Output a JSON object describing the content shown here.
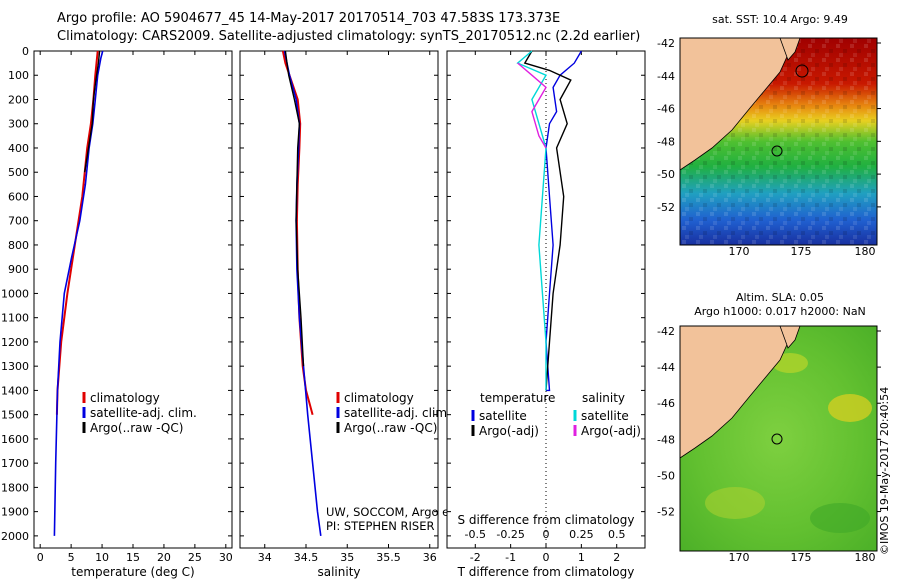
{
  "header": {
    "line1": "Argo profile: AO 5904677_45 14-May-2017 20170514_703 47.583S 173.373E",
    "line2": "Climatology: CARS2009. Satellite-adjusted climatology: synTS_20170512.nc (2.2d earlier)"
  },
  "colors": {
    "climatology": "#e00000",
    "satellite": "#0000e0",
    "argo": "#000000",
    "satellite_s": "#00d8d8",
    "argo_s": "#e020e0",
    "land": "#f2c29a"
  },
  "chart_data": [
    {
      "type": "line",
      "name": "temperature-panel",
      "xlabel": "temperature (deg C)",
      "ylabel": "",
      "xlim": [
        -1,
        31
      ],
      "ylim": [
        0,
        2050
      ],
      "xticks": [
        "0",
        "5",
        "10",
        "15",
        "20",
        "25",
        "30"
      ],
      "yticks": [
        "0",
        "100",
        "200",
        "300",
        "400",
        "500",
        "600",
        "700",
        "800",
        "900",
        "1000",
        "1100",
        "1200",
        "1300",
        "1400",
        "1500",
        "1600",
        "1700",
        "1800",
        "1900",
        "2000"
      ],
      "legend": [
        "climatology",
        "satellite-adj. clim.",
        "Argo(..raw -QC)"
      ],
      "series": [
        {
          "name": "climatology",
          "x": [
            9.3,
            9.1,
            8.9,
            8.6,
            8.2,
            7.6,
            6.8,
            5.6,
            4.4,
            3.4,
            2.8,
            2.7
          ],
          "y": [
            0,
            50,
            100,
            200,
            300,
            400,
            600,
            800,
            1000,
            1200,
            1400,
            1500
          ]
        },
        {
          "name": "satellite-adj. clim.",
          "x": [
            10.1,
            9.8,
            9.3,
            8.9,
            8.5,
            7.9,
            7.3,
            6.4,
            5.1,
            3.9,
            3.2,
            2.8,
            2.5,
            2.3
          ],
          "y": [
            0,
            30,
            100,
            200,
            300,
            400,
            550,
            700,
            850,
            1000,
            1200,
            1400,
            1700,
            2000
          ]
        },
        {
          "name": "Argo(..raw -QC)",
          "x": [
            9.6,
            9.4,
            9.0,
            8.6,
            8.4,
            7.8,
            7.2
          ],
          "y": [
            0,
            50,
            120,
            200,
            300,
            400,
            500
          ]
        }
      ]
    },
    {
      "type": "line",
      "name": "salinity-panel",
      "xlabel": "salinity",
      "xlim": [
        33.7,
        36.1
      ],
      "ylim": [
        0,
        2050
      ],
      "xticks": [
        "34",
        "34.5",
        "35",
        "35.5",
        "36"
      ],
      "legend": [
        "climatology",
        "satellite-adj. clim.",
        "Argo(..raw -QC)"
      ],
      "annotation": [
        "UW, SOCCOM, Argo equivalent",
        "PI: STEPHEN RISER"
      ],
      "series": [
        {
          "name": "climatology",
          "x": [
            34.22,
            34.25,
            34.32,
            34.4,
            34.43,
            34.42,
            34.4,
            34.39,
            34.4,
            34.42,
            34.46,
            34.5,
            34.54,
            34.58
          ],
          "y": [
            0,
            50,
            120,
            200,
            300,
            400,
            550,
            700,
            900,
            1100,
            1300,
            1400,
            1450,
            1500
          ]
        },
        {
          "name": "satellite-adj. clim.",
          "x": [
            34.24,
            34.27,
            34.3,
            34.38,
            34.42,
            34.41,
            34.39,
            34.38,
            34.39,
            34.42,
            34.47,
            34.52,
            34.58,
            34.64,
            34.68
          ],
          "y": [
            0,
            50,
            100,
            200,
            300,
            400,
            550,
            700,
            900,
            1100,
            1300,
            1500,
            1700,
            1900,
            2000
          ]
        },
        {
          "name": "Argo(..raw -QC)",
          "x": [
            34.25,
            34.27,
            34.29,
            34.36,
            34.42,
            34.4,
            34.39,
            34.38,
            34.4,
            34.44,
            34.47
          ],
          "y": [
            0,
            50,
            100,
            200,
            300,
            400,
            550,
            700,
            900,
            1100,
            1300
          ]
        }
      ]
    },
    {
      "type": "line",
      "name": "difference-panel",
      "xlabel": "T difference from climatology",
      "xlabel2": "S difference from climatology",
      "xlim": [
        -2.8,
        2.8
      ],
      "ylim": [
        0,
        2050
      ],
      "xticks": [
        "-2",
        "-1",
        "0",
        "1",
        "2"
      ],
      "xticks2": [
        "-0.5",
        "-0.25",
        "0",
        "0.25",
        "0.5"
      ],
      "legend_title_t": "temperature",
      "legend_title_s": "salinity",
      "legend": [
        "satellite",
        "Argo(-adj)",
        "satellite",
        "Argo(-adj)"
      ],
      "series": [
        {
          "name": "T satellite",
          "x": [
            1.0,
            0.8,
            0.4,
            0.2,
            0.3,
            0.1,
            0.0,
            0.1,
            0.2,
            0.1,
            0.0,
            0.1,
            0.0
          ],
          "y": [
            0,
            50,
            100,
            150,
            250,
            300,
            400,
            600,
            800,
            1000,
            1200,
            1400,
            1400
          ]
        },
        {
          "name": "T Argo(-adj)",
          "x": [
            -0.4,
            -0.6,
            0.1,
            0.7,
            0.4,
            0.6,
            0.3,
            0.5,
            0.4,
            0.2,
            0.1,
            0.0
          ],
          "y": [
            0,
            50,
            80,
            120,
            200,
            300,
            400,
            600,
            800,
            1000,
            1200,
            1400
          ]
        },
        {
          "name": "S satellite",
          "x": [
            -0.1,
            -0.2,
            0.0,
            -0.1,
            0.0,
            -0.05,
            0.0,
            0.0
          ],
          "y": [
            0,
            50,
            100,
            200,
            400,
            800,
            1200,
            1400
          ]
        },
        {
          "name": "S Argo(-adj)",
          "x": [
            -0.2,
            -0.1,
            0.0,
            -0.1,
            -0.05,
            0.0
          ],
          "y": [
            50,
            100,
            150,
            250,
            350,
            400
          ]
        }
      ]
    }
  ],
  "maps": {
    "sst": {
      "title": "sat. SST: 10.4 Argo: 9.49",
      "lat_ticks": [
        "-42",
        "-44",
        "-46",
        "-48",
        "-50",
        "-52"
      ],
      "lon_ticks": [
        "170",
        "175",
        "180"
      ]
    },
    "sla": {
      "title1": "Altim. SLA: 0.05",
      "title2": "Argo h1000: 0.017 h2000: NaN",
      "lat_ticks": [
        "-42",
        "-44",
        "-46",
        "-48",
        "-50",
        "-52"
      ],
      "lon_ticks": [
        "170",
        "175",
        "180"
      ]
    }
  },
  "credit": "©IMOS 19-May-2017 20:40:54"
}
